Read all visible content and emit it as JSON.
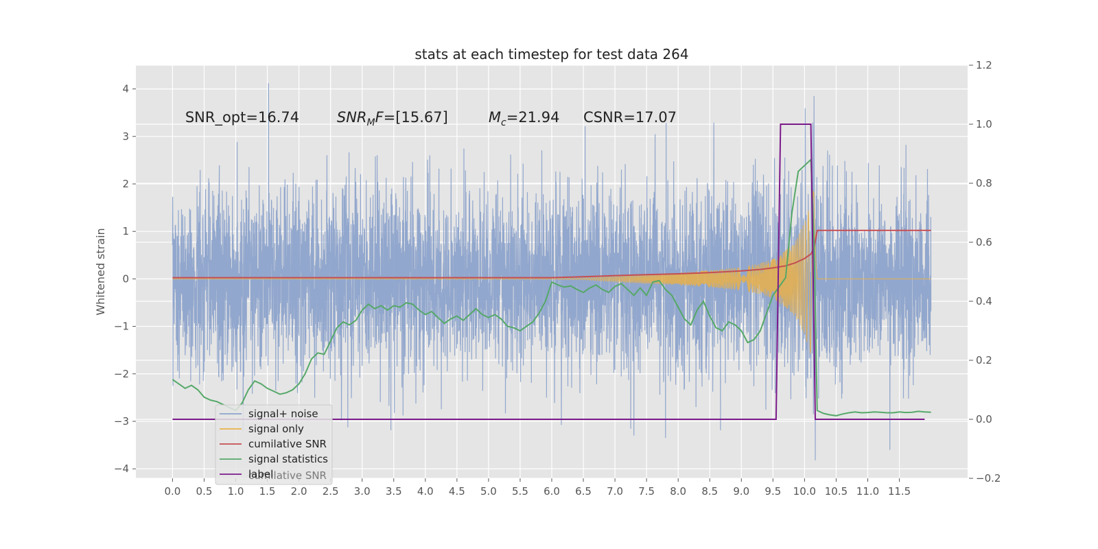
{
  "chart_data": {
    "type": "line",
    "title": "stats at each timestep for test data 264",
    "xlabel": "",
    "ylabel": "Whitened strain",
    "xlim": [
      -0.58,
      12.58
    ],
    "ylim": [
      -4.2,
      4.5
    ],
    "y2lim": [
      -0.2,
      1.2
    ],
    "x_ticks": [
      "0.0",
      "0.5",
      "1.0",
      "1.5",
      "2.0",
      "2.5",
      "3.0",
      "3.5",
      "4.0",
      "4.5",
      "5.0",
      "5.5",
      "6.0",
      "6.5",
      "7.0",
      "7.5",
      "8.0",
      "8.5",
      "9.0",
      "9.5",
      "10.0",
      "10.5",
      "11.0",
      "11.5"
    ],
    "y_ticks": [
      "4",
      "3",
      "2",
      "1",
      "0",
      "−1",
      "−2",
      "−3",
      "−4"
    ],
    "y2_ticks": [
      "1.2",
      "1.0",
      "0.8",
      "0.6",
      "0.4",
      "0.2",
      "0.0",
      "−0.2"
    ],
    "grid": true,
    "legend_position": "lower-left",
    "annotations": [
      {
        "text": "SNR_opt=16.74",
        "x": 0.2,
        "y": 3.3
      },
      {
        "text": "=[15.67]",
        "prefix_italic": "SNR",
        "sub": "M",
        "italic_after_sub": "F",
        "x": 2.6,
        "y": 3.3
      },
      {
        "text": "=21.94",
        "prefix_italic": "M",
        "sub": "c",
        "x": 5.0,
        "y": 3.3
      },
      {
        "text": "CSNR=17.07",
        "x": 6.5,
        "y": 3.3
      }
    ],
    "ghost_legend_text": "cumilative SNR",
    "series": [
      {
        "name": "signal+ noise",
        "axis": "left",
        "color": "#8da3cb",
        "kind": "noise",
        "x_range": [
          0.0,
          12.0
        ],
        "sample_spacing": 0.0025,
        "noise_std": 1.0,
        "typical_range": [
          -2.8,
          2.8
        ],
        "observed_extremes": [
          {
            "x": 1.52,
            "y": 4.12
          },
          {
            "x": 10.15,
            "y": 3.85
          },
          {
            "x": 10.17,
            "y": -3.82
          },
          {
            "x": 11.35,
            "y": -3.6
          },
          {
            "x": 7.8,
            "y": -3.35
          },
          {
            "x": 7.3,
            "y": -3.3
          }
        ]
      },
      {
        "name": "signal only",
        "axis": "left",
        "color": "#e8b04a",
        "kind": "chirp",
        "x": [
          0.0,
          6.0,
          6.5,
          7.0,
          7.5,
          8.0,
          8.5,
          9.0,
          9.3,
          9.5,
          9.7,
          9.85,
          10.0,
          10.1,
          10.15,
          10.2,
          12.0
        ],
        "amplitude": [
          0.0,
          0.01,
          0.02,
          0.06,
          0.1,
          0.13,
          0.18,
          0.25,
          0.33,
          0.42,
          0.6,
          0.8,
          1.2,
          1.6,
          1.9,
          0.0,
          0.0
        ]
      },
      {
        "name": "cumilative SNR",
        "axis": "right",
        "color": "#c44e52",
        "x": [
          0.0,
          5.0,
          6.0,
          6.5,
          7.0,
          7.5,
          8.0,
          8.5,
          9.0,
          9.3,
          9.5,
          9.7,
          9.85,
          10.0,
          10.1,
          10.15,
          10.2,
          12.0
        ],
        "values": [
          0.48,
          0.48,
          0.48,
          0.483,
          0.487,
          0.49,
          0.493,
          0.497,
          0.503,
          0.508,
          0.513,
          0.52,
          0.53,
          0.545,
          0.56,
          0.58,
          0.64,
          0.64
        ]
      },
      {
        "name": "signal statistics",
        "axis": "right",
        "color": "#55a868",
        "x": [
          0.0,
          0.1,
          0.2,
          0.3,
          0.4,
          0.5,
          0.6,
          0.7,
          0.8,
          0.9,
          1.0,
          1.1,
          1.2,
          1.3,
          1.4,
          1.5,
          1.6,
          1.7,
          1.8,
          1.9,
          2.0,
          2.1,
          2.2,
          2.3,
          2.4,
          2.5,
          2.6,
          2.7,
          2.8,
          2.9,
          3.0,
          3.1,
          3.2,
          3.3,
          3.4,
          3.5,
          3.6,
          3.7,
          3.8,
          3.9,
          4.0,
          4.1,
          4.2,
          4.3,
          4.4,
          4.5,
          4.6,
          4.7,
          4.8,
          4.9,
          5.0,
          5.1,
          5.2,
          5.3,
          5.4,
          5.5,
          5.6,
          5.7,
          5.8,
          5.9,
          6.0,
          6.1,
          6.2,
          6.3,
          6.4,
          6.5,
          6.6,
          6.7,
          6.8,
          6.9,
          7.0,
          7.1,
          7.2,
          7.3,
          7.4,
          7.5,
          7.6,
          7.7,
          7.8,
          7.9,
          8.0,
          8.1,
          8.2,
          8.3,
          8.4,
          8.5,
          8.6,
          8.7,
          8.8,
          8.9,
          9.0,
          9.1,
          9.2,
          9.3,
          9.4,
          9.5,
          9.6,
          9.7,
          9.8,
          9.9,
          10.0,
          10.1,
          10.15,
          10.2,
          10.3,
          10.4,
          10.5,
          10.6,
          10.7,
          10.8,
          10.9,
          11.0,
          11.1,
          11.2,
          11.3,
          11.4,
          11.5,
          11.6,
          11.7,
          11.8,
          11.9,
          12.0
        ],
        "values": [
          0.135,
          0.12,
          0.105,
          0.115,
          0.1,
          0.075,
          0.065,
          0.06,
          0.05,
          0.04,
          0.03,
          0.055,
          0.1,
          0.13,
          0.12,
          0.105,
          0.095,
          0.085,
          0.09,
          0.1,
          0.12,
          0.155,
          0.205,
          0.225,
          0.22,
          0.265,
          0.31,
          0.33,
          0.32,
          0.335,
          0.37,
          0.39,
          0.375,
          0.385,
          0.37,
          0.385,
          0.38,
          0.395,
          0.39,
          0.37,
          0.355,
          0.365,
          0.345,
          0.325,
          0.34,
          0.35,
          0.335,
          0.355,
          0.375,
          0.355,
          0.345,
          0.355,
          0.34,
          0.315,
          0.31,
          0.3,
          0.315,
          0.33,
          0.36,
          0.4,
          0.465,
          0.455,
          0.448,
          0.452,
          0.44,
          0.43,
          0.445,
          0.455,
          0.44,
          0.43,
          0.45,
          0.46,
          0.44,
          0.42,
          0.445,
          0.42,
          0.465,
          0.47,
          0.44,
          0.42,
          0.38,
          0.34,
          0.32,
          0.37,
          0.4,
          0.35,
          0.31,
          0.3,
          0.33,
          0.32,
          0.3,
          0.26,
          0.27,
          0.3,
          0.36,
          0.42,
          0.45,
          0.48,
          0.7,
          0.84,
          0.86,
          0.88,
          0.6,
          0.03,
          0.02,
          0.015,
          0.012,
          0.018,
          0.022,
          0.025,
          0.022,
          0.023,
          0.025,
          0.024,
          0.022,
          0.022,
          0.025,
          0.023,
          0.024,
          0.027,
          0.025,
          0.024
        ],
        "note_visible": false
      },
      {
        "name": "label",
        "axis": "right",
        "color": "#7b1a8a",
        "x": [
          0.0,
          9.55,
          9.62,
          10.1,
          10.17,
          11.9
        ],
        "values": [
          0.0,
          0.0,
          1.0,
          1.0,
          0.0,
          0.0
        ]
      }
    ]
  }
}
